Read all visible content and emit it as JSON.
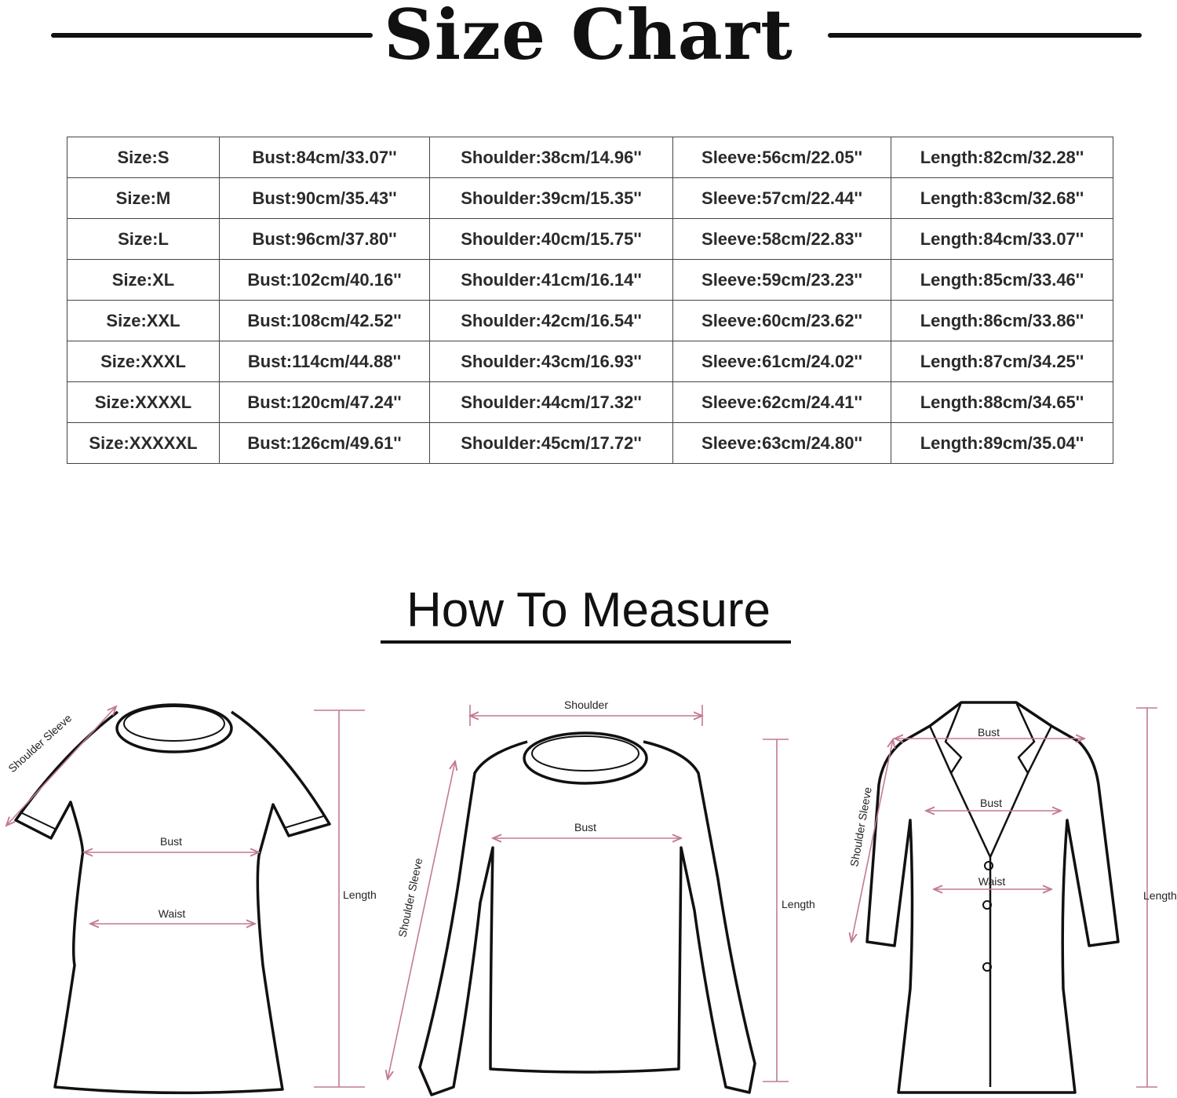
{
  "title": "Size Chart",
  "size_table": {
    "rows": [
      [
        "Size:S",
        "Bust:84cm/33.07''",
        "Shoulder:38cm/14.96''",
        "Sleeve:56cm/22.05''",
        "Length:82cm/32.28''"
      ],
      [
        "Size:M",
        "Bust:90cm/35.43''",
        "Shoulder:39cm/15.35''",
        "Sleeve:57cm/22.44''",
        "Length:83cm/32.68''"
      ],
      [
        "Size:L",
        "Bust:96cm/37.80''",
        "Shoulder:40cm/15.75''",
        "Sleeve:58cm/22.83''",
        "Length:84cm/33.07''"
      ],
      [
        "Size:XL",
        "Bust:102cm/40.16''",
        "Shoulder:41cm/16.14''",
        "Sleeve:59cm/23.23''",
        "Length:85cm/33.46''"
      ],
      [
        "Size:XXL",
        "Bust:108cm/42.52''",
        "Shoulder:42cm/16.54''",
        "Sleeve:60cm/23.62''",
        "Length:86cm/33.86''"
      ],
      [
        "Size:XXXL",
        "Bust:114cm/44.88''",
        "Shoulder:43cm/16.93''",
        "Sleeve:61cm/24.02''",
        "Length:87cm/34.25''"
      ],
      [
        "Size:XXXXL",
        "Bust:120cm/47.24''",
        "Shoulder:44cm/17.32''",
        "Sleeve:62cm/24.41''",
        "Length:88cm/34.65''"
      ],
      [
        "Size:XXXXXL",
        "Bust:126cm/49.61''",
        "Shoulder:45cm/17.72''",
        "Sleeve:63cm/24.80''",
        "Length:89cm/35.04''"
      ]
    ]
  },
  "how_to_measure": {
    "title": "How To Measure",
    "measure_color": "#c27a93",
    "tshirt": {
      "shoulder_sleeve": "Shoulder Sleeve",
      "bust": "Bust",
      "waist": "Waist",
      "length": "Length"
    },
    "sweater": {
      "shoulder": "Shoulder",
      "bust": "Bust",
      "shoulder_sleeve": "Shoulder Sleeve",
      "length": "Length"
    },
    "coat": {
      "bust_top": "Bust",
      "bust": "Bust",
      "waist": "Waist",
      "shoulder_sleeve": "Shoulder Sleeve",
      "length": "Length"
    }
  }
}
